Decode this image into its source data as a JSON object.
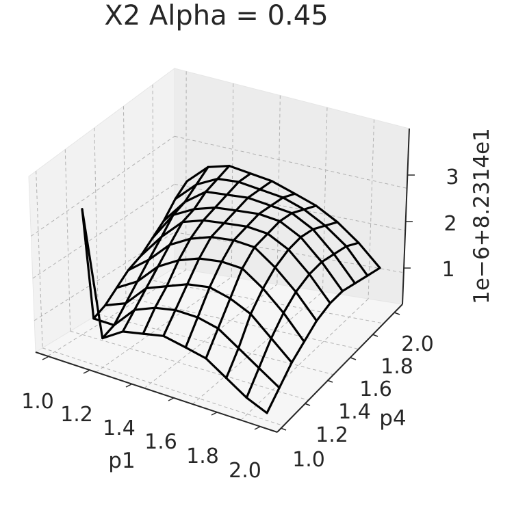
{
  "chart_data": {
    "type": "surface",
    "style": "wireframe",
    "title": "X2 Alpha = 0.45",
    "xlabel": "p1",
    "ylabel": "p4",
    "zlabel": "1e−6+8.2314e1",
    "x_ticks": [
      "1.0",
      "1.2",
      "1.4",
      "1.6",
      "1.8",
      "2.0"
    ],
    "y_ticks": [
      "1.0",
      "1.2",
      "1.4",
      "1.6",
      "1.8",
      "2.0"
    ],
    "z_ticks": [
      "1",
      "2",
      "3"
    ],
    "xlim": [
      1.0,
      2.0
    ],
    "ylim": [
      1.0,
      2.0
    ],
    "zlim": [
      0.1,
      3.8
    ],
    "grid": true,
    "wire_color": "#000000",
    "x": [
      1.0,
      1.11,
      1.22,
      1.33,
      1.44,
      1.56,
      1.67,
      1.78,
      1.89,
      2.0
    ],
    "y": [
      1.0,
      1.11,
      1.22,
      1.33,
      1.44,
      1.56,
      1.67,
      1.78,
      1.89,
      2.0
    ],
    "z": [
      [
        3.4,
        0.6,
        0.6,
        0.7,
        0.8,
        0.8,
        0.9,
        1.0,
        1.2,
        1.3
      ],
      [
        0.6,
        0.6,
        0.8,
        1.0,
        1.2,
        1.4,
        1.6,
        1.6,
        1.7,
        1.8
      ],
      [
        0.9,
        1.1,
        1.3,
        1.5,
        1.7,
        1.9,
        1.9,
        2.0,
        2.0,
        2.0
      ],
      [
        1.0,
        1.3,
        1.5,
        1.8,
        2.0,
        2.1,
        2.1,
        2.1,
        2.1,
        2.0
      ],
      [
        1.1,
        1.4,
        1.7,
        2.0,
        2.2,
        2.2,
        2.2,
        2.2,
        2.1,
        2.0
      ],
      [
        1.0,
        1.4,
        1.8,
        2.1,
        2.3,
        2.3,
        2.3,
        2.2,
        2.1,
        1.9
      ],
      [
        0.9,
        1.3,
        1.7,
        2.1,
        2.3,
        2.3,
        2.3,
        2.2,
        2.0,
        1.8
      ],
      [
        0.6,
        1.0,
        1.5,
        1.8,
        2.0,
        2.1,
        2.1,
        2.0,
        1.8,
        1.6
      ],
      [
        0.3,
        0.7,
        1.1,
        1.4,
        1.6,
        1.7,
        1.7,
        1.6,
        1.5,
        1.3
      ],
      [
        0.1,
        0.4,
        0.7,
        0.9,
        1.1,
        1.2,
        1.2,
        1.1,
        1.0,
        0.9
      ]
    ]
  }
}
